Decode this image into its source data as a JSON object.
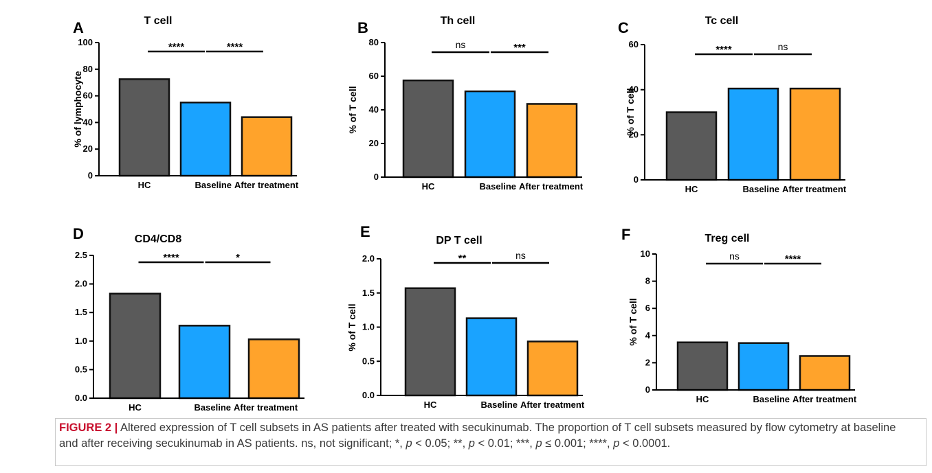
{
  "categories": [
    "HC",
    "Baseline",
    "After treatment"
  ],
  "colors": {
    "HC": "#5a5a5a",
    "Baseline": "#1aa3ff",
    "After treatment": "#ffa32b",
    "outline": "#111111"
  },
  "chart_data": [
    {
      "type": "bar",
      "panel_letter": "A",
      "title": "T cell",
      "ylabel": "% of lymphocyte",
      "xlabel": "",
      "categories": [
        "HC",
        "Baseline",
        "After treatment"
      ],
      "values": [
        72.5,
        55,
        44
      ],
      "ylim": [
        0,
        100
      ],
      "yticks": [
        "0",
        "20",
        "40",
        "60",
        "80",
        "100"
      ],
      "significance": [
        {
          "from": "HC",
          "to": "Baseline",
          "label": "****"
        },
        {
          "from": "Baseline",
          "to": "After treatment",
          "label": "****"
        }
      ]
    },
    {
      "type": "bar",
      "panel_letter": "B",
      "title": "Th cell",
      "ylabel": "% of T cell",
      "xlabel": "",
      "categories": [
        "HC",
        "Baseline",
        "After treatment"
      ],
      "values": [
        57.5,
        51,
        43.5
      ],
      "ylim": [
        0,
        80
      ],
      "yticks": [
        "0",
        "20",
        "40",
        "60",
        "80"
      ],
      "significance": [
        {
          "from": "HC",
          "to": "Baseline",
          "label": "ns"
        },
        {
          "from": "Baseline",
          "to": "After treatment",
          "label": "***"
        }
      ]
    },
    {
      "type": "bar",
      "panel_letter": "C",
      "title": "Tc cell",
      "ylabel": "% of T cell",
      "xlabel": "",
      "categories": [
        "HC",
        "Baseline",
        "After treatment"
      ],
      "values": [
        30,
        40.5,
        40.5
      ],
      "ylim": [
        0,
        60
      ],
      "yticks": [
        "0",
        "20",
        "40",
        "60"
      ],
      "significance": [
        {
          "from": "HC",
          "to": "Baseline",
          "label": "****"
        },
        {
          "from": "Baseline",
          "to": "After treatment",
          "label": "ns"
        }
      ]
    },
    {
      "type": "bar",
      "panel_letter": "D",
      "title": "CD4/CD8",
      "ylabel": "",
      "xlabel": "",
      "categories": [
        "HC",
        "Baseline",
        "After treatment"
      ],
      "values": [
        1.83,
        1.27,
        1.03
      ],
      "ylim": [
        0,
        2.5
      ],
      "yticks": [
        "0.0",
        "0.5",
        "1.0",
        "1.5",
        "2.0",
        "2.5"
      ],
      "significance": [
        {
          "from": "HC",
          "to": "Baseline",
          "label": "****"
        },
        {
          "from": "Baseline",
          "to": "After treatment",
          "label": "*"
        }
      ]
    },
    {
      "type": "bar",
      "panel_letter": "E",
      "title": "DP T cell",
      "ylabel": "% of T cell",
      "xlabel": "",
      "categories": [
        "HC",
        "Baseline",
        "After treatment"
      ],
      "values": [
        1.57,
        1.13,
        0.79
      ],
      "ylim": [
        0,
        2.0
      ],
      "yticks": [
        "0.0",
        "0.5",
        "1.0",
        "1.5",
        "2.0"
      ],
      "significance": [
        {
          "from": "HC",
          "to": "Baseline",
          "label": "**"
        },
        {
          "from": "Baseline",
          "to": "After treatment",
          "label": "ns"
        }
      ]
    },
    {
      "type": "bar",
      "panel_letter": "F",
      "title": "Treg cell",
      "ylabel": "% of T cell",
      "xlabel": "",
      "categories": [
        "HC",
        "Baseline",
        "After treatment"
      ],
      "values": [
        3.5,
        3.45,
        2.5
      ],
      "ylim": [
        0,
        10
      ],
      "yticks": [
        "0",
        "2",
        "4",
        "6",
        "8",
        "10"
      ],
      "significance": [
        {
          "from": "HC",
          "to": "Baseline",
          "label": "ns"
        },
        {
          "from": "Baseline",
          "to": "After treatment",
          "label": "****"
        }
      ]
    }
  ],
  "caption": {
    "figure_label": "FIGURE 2 |",
    "text": " Altered expression of T cell subsets in AS patients after treated with secukinumab. The proportion of T cell subsets measured by flow cytometry at baseline and after receiving secukinumab in AS patients. ",
    "stats": "ns, not significant; *, p < 0.05; **, p < 0.01; ***, p ≤ 0.001; ****, p < 0.0001."
  }
}
